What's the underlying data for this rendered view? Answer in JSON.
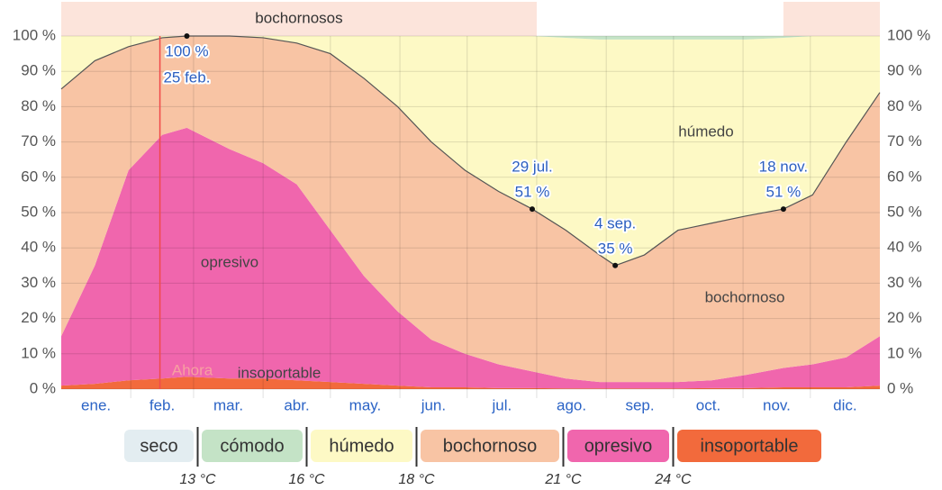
{
  "chart_data": {
    "type": "stacked_area",
    "x": [
      0,
      15,
      30,
      45,
      56,
      75,
      90,
      105,
      120,
      135,
      150,
      165,
      180,
      195,
      210,
      225,
      240,
      247,
      260,
      275,
      290,
      305,
      322,
      335,
      350,
      365
    ],
    "xlim": [
      0,
      365
    ],
    "xticks": [
      {
        "value": 15.5,
        "label": "ene."
      },
      {
        "value": 45,
        "label": "feb."
      },
      {
        "value": 74.5,
        "label": "mar."
      },
      {
        "value": 105,
        "label": "abr."
      },
      {
        "value": 135.5,
        "label": "may."
      },
      {
        "value": 166,
        "label": "jun."
      },
      {
        "value": 196.5,
        "label": "jul."
      },
      {
        "value": 227.5,
        "label": "ago."
      },
      {
        "value": 258,
        "label": "sep."
      },
      {
        "value": 288.5,
        "label": "oct."
      },
      {
        "value": 319,
        "label": "nov."
      },
      {
        "value": 349.5,
        "label": "dic."
      }
    ],
    "xgrid": [
      31,
      59,
      90,
      120,
      151,
      181,
      212,
      243,
      273,
      304,
      334
    ],
    "ylim": [
      0,
      100
    ],
    "yticks": [
      {
        "value": 0,
        "label": "0 %"
      },
      {
        "value": 10,
        "label": "10 %"
      },
      {
        "value": 20,
        "label": "20 %"
      },
      {
        "value": 30,
        "label": "30 %"
      },
      {
        "value": 40,
        "label": "40 %"
      },
      {
        "value": 50,
        "label": "50 %"
      },
      {
        "value": 60,
        "label": "60 %"
      },
      {
        "value": 70,
        "label": "70 %"
      },
      {
        "value": 80,
        "label": "80 %"
      },
      {
        "value": 90,
        "label": "90 %"
      },
      {
        "value": 100,
        "label": "100 %"
      }
    ],
    "grid": true,
    "series": [
      {
        "name": "seco",
        "color": "#e3edf1",
        "values": [
          0,
          0,
          0,
          0,
          0,
          0,
          0,
          0,
          0,
          0,
          0,
          0,
          0,
          0,
          0,
          0,
          0,
          0,
          0,
          0,
          0,
          0,
          0,
          0,
          0,
          0
        ]
      },
      {
        "name": "cómodo",
        "color": "#c4e3c6",
        "values": [
          0,
          0,
          0,
          0,
          0,
          0,
          0,
          0,
          0,
          0,
          0,
          0,
          0,
          0,
          0,
          0.5,
          1,
          1,
          1,
          1,
          1,
          1,
          0.5,
          0,
          0,
          0
        ]
      },
      {
        "name": "húmedo",
        "color": "#fdf9c5",
        "values": [
          15,
          7,
          3,
          0.5,
          0,
          0,
          0.5,
          2,
          5,
          12,
          20,
          30,
          38,
          44,
          49,
          54.5,
          61,
          64,
          61,
          54,
          52,
          50,
          48.5,
          45,
          30,
          16
        ]
      },
      {
        "name": "bochornoso",
        "color": "#f8c4a4",
        "values": [
          70,
          58,
          35,
          27.5,
          26,
          32,
          35.5,
          40,
          50,
          56,
          58,
          56,
          52,
          49,
          46,
          42,
          36,
          33,
          36,
          43,
          44.5,
          45,
          45,
          48,
          61,
          69
        ]
      },
      {
        "name": "opresivo",
        "color": "#f066ad",
        "values": [
          14,
          33.5,
          59.5,
          69,
          70.5,
          65,
          61,
          55.5,
          43,
          30.5,
          21,
          13.5,
          9.5,
          6.7,
          4.7,
          2.8,
          1.8,
          1.8,
          1.8,
          1.8,
          2.2,
          3.7,
          5.5,
          6.5,
          8.5,
          14
        ]
      },
      {
        "name": "insoportable",
        "color": "#f26a3c",
        "values": [
          1,
          1.5,
          2.5,
          3,
          3.5,
          3,
          3,
          2.5,
          2,
          1.5,
          1,
          0.5,
          0.5,
          0.3,
          0.3,
          0.2,
          0.2,
          0.2,
          0.2,
          0.2,
          0.3,
          0.3,
          0.5,
          0.5,
          0.5,
          1
        ]
      }
    ],
    "thresholds": [
      "13 °C",
      "16 °C",
      "18 °C",
      "21 °C",
      "24 °C"
    ],
    "annotations": [
      {
        "x": 56,
        "y": 100,
        "value_label": "100 %",
        "date": "25 feb."
      },
      {
        "x": 210,
        "y": 51,
        "value_label": "51 %",
        "date": "29 jul."
      },
      {
        "x": 247,
        "y": 35,
        "value_label": "35 %",
        "date": "4 sep."
      },
      {
        "x": 322,
        "y": 51,
        "value_label": "51 %",
        "date": "18 nov."
      }
    ],
    "seasons": [
      {
        "label": "bochornosos",
        "start": 0,
        "end": 212
      },
      {
        "start": 322,
        "end": 365
      }
    ],
    "now": {
      "label": "Ahora",
      "x": 44
    }
  }
}
